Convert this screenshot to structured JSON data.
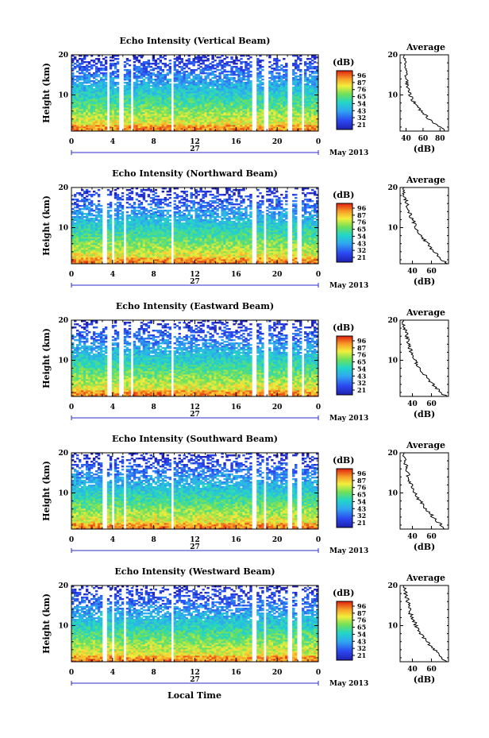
{
  "figure": {
    "xlabel": "Local Time",
    "date_label": "May 2013",
    "day_label": "27",
    "avg_title": "Average",
    "avg_xlabel": "(dB)",
    "ylabel": "Height (km)",
    "colorbar_unit": "(dB)",
    "colors": {
      "low": "#2b2be0",
      "mid": "#22d6c8",
      "high": "#e83a1a",
      "gap": "#ffffff"
    }
  },
  "chart_data": [
    {
      "type": "heatmap",
      "title": "Echo Intensity (Vertical Beam)",
      "x_ticks": [
        "0",
        "4",
        "8",
        "12",
        "16",
        "20",
        "0"
      ],
      "y_ticks": [
        "10",
        "20"
      ],
      "xlim": [
        0,
        24
      ],
      "ylim": [
        1,
        20
      ],
      "colorbar_ticks": [
        "96",
        "87",
        "76",
        "65",
        "54",
        "43",
        "32",
        "21"
      ],
      "gaps_hours": [
        [
          3.4,
          3.8
        ],
        [
          4.6,
          5.0
        ],
        [
          5.8,
          6.1
        ],
        [
          9.6,
          9.9
        ],
        [
          17.6,
          18.0
        ],
        [
          18.8,
          19.1
        ],
        [
          21.1,
          21.4
        ],
        [
          22.3,
          22.6
        ]
      ],
      "avg_profile": {
        "x_ticks": [
          "40",
          "60",
          "80"
        ],
        "xlim": [
          33,
          90
        ],
        "heights": [
          1,
          2,
          3,
          4,
          5,
          6,
          7,
          8,
          9,
          10,
          11,
          12,
          13,
          14,
          15,
          16,
          17,
          18,
          19,
          20
        ],
        "values": [
          86,
          80,
          73,
          67,
          63,
          58,
          54,
          50,
          47,
          45,
          43,
          42,
          41,
          40,
          40,
          39,
          40,
          38,
          39,
          38
        ]
      }
    },
    {
      "type": "heatmap",
      "title": "Echo Intensity (Northward Beam)",
      "x_ticks": [
        "0",
        "4",
        "8",
        "12",
        "16",
        "20",
        "0"
      ],
      "y_ticks": [
        "10",
        "20"
      ],
      "xlim": [
        0,
        24
      ],
      "ylim": [
        1,
        20
      ],
      "colorbar_ticks": [
        "96",
        "87",
        "76",
        "65",
        "54",
        "43",
        "32",
        "21"
      ],
      "gaps_hours": [
        [
          3.0,
          3.4
        ],
        [
          3.9,
          4.2
        ],
        [
          5.0,
          5.3
        ],
        [
          9.6,
          9.9
        ],
        [
          17.5,
          18.0
        ],
        [
          18.6,
          18.9
        ],
        [
          21.1,
          21.4
        ],
        [
          22.0,
          22.3
        ]
      ],
      "avg_profile": {
        "x_ticks": [
          "40",
          "60"
        ],
        "xlim": [
          27,
          78
        ],
        "heights": [
          1,
          2,
          3,
          4,
          5,
          6,
          7,
          8,
          9,
          10,
          11,
          12,
          13,
          14,
          15,
          16,
          17,
          18,
          19,
          20
        ],
        "values": [
          76,
          71,
          67,
          63,
          59,
          56,
          52,
          49,
          46,
          44,
          42,
          40,
          38,
          36,
          35,
          34,
          33,
          32,
          31,
          31
        ]
      }
    },
    {
      "type": "heatmap",
      "title": "Echo Intensity (Eastward Beam)",
      "x_ticks": [
        "0",
        "4",
        "8",
        "12",
        "16",
        "20",
        "0"
      ],
      "y_ticks": [
        "10",
        "20"
      ],
      "xlim": [
        0,
        24
      ],
      "ylim": [
        1,
        20
      ],
      "colorbar_ticks": [
        "96",
        "87",
        "76",
        "65",
        "54",
        "43",
        "32",
        "21"
      ],
      "gaps_hours": [
        [
          3.5,
          3.9
        ],
        [
          4.6,
          5.0
        ],
        [
          5.8,
          6.1
        ],
        [
          9.6,
          9.9
        ],
        [
          17.6,
          18.0
        ],
        [
          18.8,
          19.1
        ],
        [
          21.1,
          21.4
        ],
        [
          22.3,
          22.6
        ]
      ],
      "avg_profile": {
        "x_ticks": [
          "40",
          "60"
        ],
        "xlim": [
          27,
          78
        ],
        "heights": [
          1,
          2,
          3,
          4,
          5,
          6,
          7,
          8,
          9,
          10,
          11,
          12,
          13,
          14,
          15,
          16,
          17,
          18,
          19,
          20
        ],
        "values": [
          75,
          70,
          66,
          62,
          58,
          54,
          51,
          48,
          45,
          43,
          41,
          39,
          37,
          36,
          35,
          34,
          33,
          32,
          31,
          31
        ]
      }
    },
    {
      "type": "heatmap",
      "title": "Echo Intensity (Southward Beam)",
      "x_ticks": [
        "0",
        "4",
        "8",
        "12",
        "16",
        "20",
        "0"
      ],
      "y_ticks": [
        "10",
        "20"
      ],
      "xlim": [
        0,
        24
      ],
      "ylim": [
        1,
        20
      ],
      "colorbar_ticks": [
        "96",
        "87",
        "76",
        "65",
        "54",
        "43",
        "32",
        "21"
      ],
      "gaps_hours": [
        [
          3.0,
          3.4
        ],
        [
          3.9,
          4.2
        ],
        [
          5.0,
          5.3
        ],
        [
          9.6,
          9.9
        ],
        [
          17.5,
          18.0
        ],
        [
          18.6,
          18.9
        ],
        [
          21.1,
          21.4
        ],
        [
          22.0,
          22.3
        ]
      ],
      "avg_profile": {
        "x_ticks": [
          "40",
          "60"
        ],
        "xlim": [
          27,
          78
        ],
        "heights": [
          1,
          2,
          3,
          4,
          5,
          6,
          7,
          8,
          9,
          10,
          11,
          12,
          13,
          14,
          15,
          16,
          17,
          18,
          19,
          20
        ],
        "values": [
          74,
          70,
          66,
          62,
          58,
          54,
          51,
          48,
          45,
          43,
          41,
          39,
          37,
          36,
          35,
          34,
          33,
          32,
          31,
          31
        ]
      }
    },
    {
      "type": "heatmap",
      "title": "Echo Intensity (Westward Beam)",
      "x_ticks": [
        "0",
        "4",
        "8",
        "12",
        "16",
        "20",
        "0"
      ],
      "y_ticks": [
        "10",
        "20"
      ],
      "xlim": [
        0,
        24
      ],
      "ylim": [
        1,
        20
      ],
      "colorbar_ticks": [
        "96",
        "87",
        "76",
        "65",
        "54",
        "43",
        "32",
        "21"
      ],
      "gaps_hours": [
        [
          3.0,
          3.4
        ],
        [
          3.9,
          4.2
        ],
        [
          5.0,
          5.3
        ],
        [
          9.6,
          9.9
        ],
        [
          17.5,
          18.0
        ],
        [
          18.6,
          18.9
        ],
        [
          21.1,
          21.4
        ],
        [
          22.0,
          22.3
        ]
      ],
      "avg_profile": {
        "x_ticks": [
          "40",
          "60"
        ],
        "xlim": [
          27,
          78
        ],
        "heights": [
          1,
          2,
          3,
          4,
          5,
          6,
          7,
          8,
          9,
          10,
          11,
          12,
          13,
          14,
          15,
          16,
          17,
          18,
          19,
          20
        ],
        "values": [
          75,
          71,
          67,
          63,
          59,
          55,
          52,
          49,
          46,
          44,
          42,
          40,
          38,
          37,
          36,
          35,
          34,
          33,
          32,
          31
        ]
      }
    }
  ]
}
